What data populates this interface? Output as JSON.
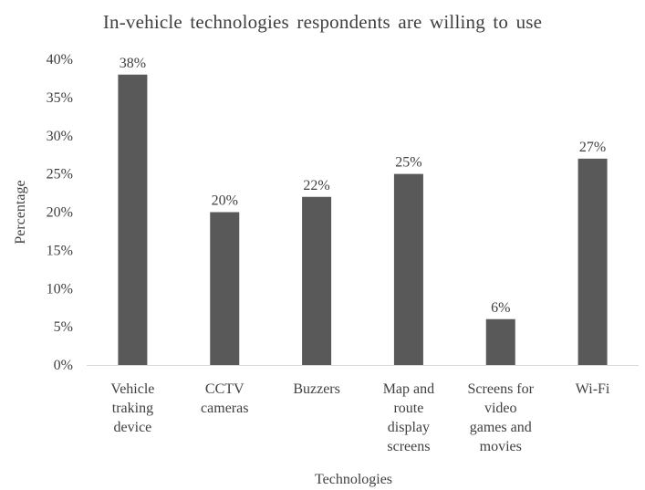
{
  "chart_data": {
    "type": "bar",
    "title": "In-vehicle technologies respondents are willing to use",
    "xlabel": "Technologies",
    "ylabel": "Percentage",
    "categories": [
      [
        "Vehicle",
        "traking",
        "device"
      ],
      [
        "CCTV",
        "cameras"
      ],
      [
        "Buzzers"
      ],
      [
        "Map and",
        "route",
        "display",
        "screens"
      ],
      [
        "Screens for",
        "video",
        "games and",
        "movies"
      ],
      [
        "Wi-Fi"
      ]
    ],
    "values": [
      38,
      20,
      22,
      25,
      6,
      27
    ],
    "data_labels": [
      "38%",
      "20%",
      "22%",
      "25%",
      "6%",
      "27%"
    ],
    "ylim": [
      0,
      40
    ],
    "yticks": [
      0,
      5,
      10,
      15,
      20,
      25,
      30,
      35,
      40
    ],
    "ytick_labels": [
      "0%",
      "5%",
      "10%",
      "15%",
      "20%",
      "25%",
      "30%",
      "35%",
      "40%"
    ],
    "bar_color": "#595959",
    "text_color": "#404040",
    "axis_color": "#d9d9d9",
    "grid": false,
    "legend": "none"
  }
}
